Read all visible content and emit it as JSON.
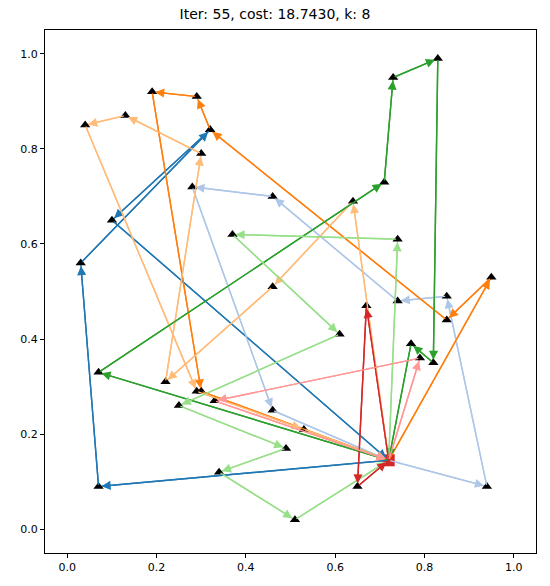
{
  "chart_data": {
    "type": "route",
    "title": "Iter: 55, cost: 18.7430, k: 8",
    "xlim": [
      -0.05,
      1.05
    ],
    "ylim": [
      -0.05,
      1.05
    ],
    "xticks": [
      {
        "value": 0,
        "label": "0.0"
      },
      0.2,
      0.4,
      0.6,
      0.8,
      {
        "value": 1,
        "label": "1.0"
      }
    ],
    "yticks": [
      {
        "value": 0,
        "label": "0.0"
      },
      0.2,
      0.4,
      0.6,
      0.8,
      {
        "value": 1,
        "label": "1.0"
      }
    ],
    "grid": false,
    "marker": "triangle-up",
    "depot": {
      "x": 0.72,
      "y": 0.145,
      "marker": "square",
      "color": "#d62728"
    },
    "series": [
      {
        "color": "#1f77b4",
        "x": [
          0.72,
          0.07,
          0.03,
          0.32,
          0.1,
          0.72
        ],
        "y": [
          0.145,
          0.09,
          0.56,
          0.84,
          0.65,
          0.145
        ]
      },
      {
        "color": "#aec7e8",
        "x": [
          0.72,
          0.94,
          0.85,
          0.74,
          0.46,
          0.28,
          0.46,
          0.72
        ],
        "y": [
          0.145,
          0.09,
          0.49,
          0.48,
          0.7,
          0.72,
          0.25,
          0.145
        ]
      },
      {
        "color": "#ff7f0e",
        "x": [
          0.72,
          0.95,
          0.85,
          0.32,
          0.29,
          0.19,
          0.3,
          0.72
        ],
        "y": [
          0.145,
          0.53,
          0.44,
          0.84,
          0.91,
          0.92,
          0.29,
          0.145
        ]
      },
      {
        "color": "#ffbb78",
        "x": [
          0.72,
          0.64,
          0.46,
          0.22,
          0.3,
          0.13,
          0.04,
          0.29,
          0.53,
          0.72
        ],
        "y": [
          0.145,
          0.69,
          0.51,
          0.31,
          0.79,
          0.87,
          0.85,
          0.29,
          0.21,
          0.145
        ]
      },
      {
        "color": "#2ca02c",
        "x": [
          0.72,
          0.07,
          0.71,
          0.73,
          0.83,
          0.82,
          0.77,
          0.72
        ],
        "y": [
          0.145,
          0.33,
          0.73,
          0.95,
          0.99,
          0.35,
          0.39,
          0.145
        ]
      },
      {
        "color": "#98df8a",
        "x": [
          0.72,
          0.74,
          0.37,
          0.61,
          0.25,
          0.49,
          0.34,
          0.51,
          0.72
        ],
        "y": [
          0.145,
          0.61,
          0.62,
          0.41,
          0.26,
          0.17,
          0.12,
          0.02,
          0.145
        ]
      },
      {
        "color": "#d62728",
        "x": [
          0.72,
          0.67,
          0.65,
          0.72
        ],
        "y": [
          0.145,
          0.47,
          0.09,
          0.145
        ]
      },
      {
        "color": "#ff9896",
        "x": [
          0.72,
          0.79,
          0.33,
          0.72
        ],
        "y": [
          0.145,
          0.36,
          0.27,
          0.145
        ]
      }
    ]
  }
}
